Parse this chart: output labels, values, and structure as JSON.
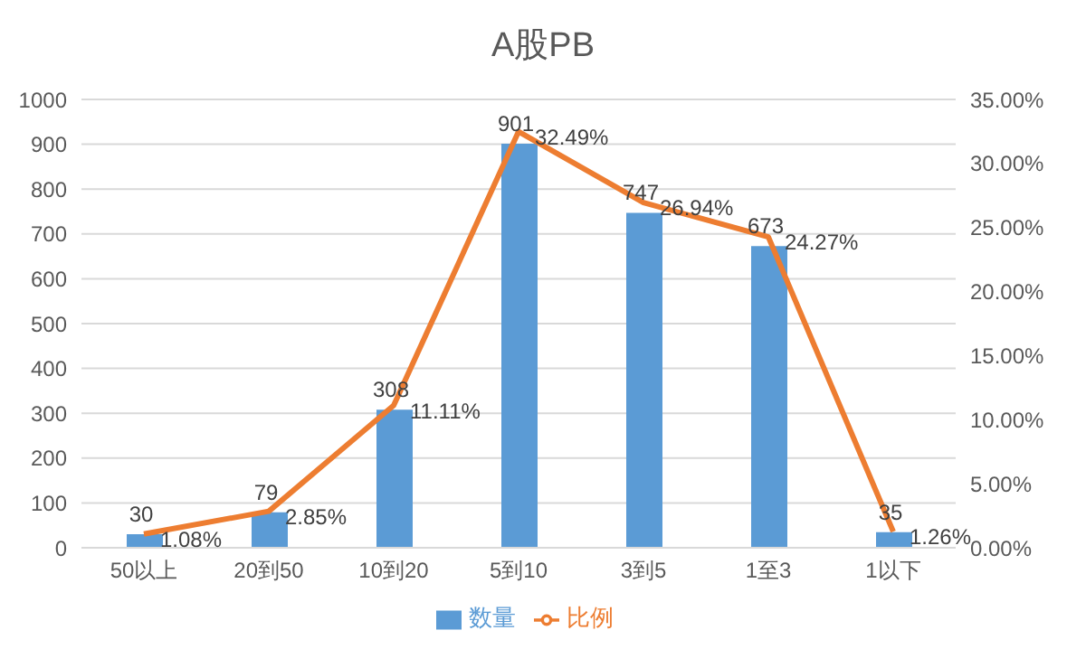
{
  "chart_data": {
    "type": "bar",
    "title": "A股PB",
    "categories": [
      "50以上",
      "20到50",
      "10到20",
      "5到10",
      "3到5",
      "1至3",
      "1以下"
    ],
    "series": [
      {
        "name": "数量",
        "color": "#5b9bd5",
        "values": [
          30,
          79,
          308,
          901,
          747,
          673,
          35
        ],
        "value_labels": [
          "30",
          "79",
          "308",
          "901",
          "747",
          "673",
          "35"
        ]
      },
      {
        "name": "比例",
        "type": "line",
        "axis": "y2",
        "color": "#ed7d31",
        "values": [
          1.08,
          2.85,
          11.11,
          32.49,
          26.94,
          24.27,
          1.26
        ],
        "value_labels": [
          "1.08%",
          "2.85%",
          "11.11%",
          "32.49%",
          "26.94%",
          "24.27%",
          "1.26%"
        ]
      }
    ],
    "ylim": [
      0,
      1000
    ],
    "yticks": [
      0,
      100,
      200,
      300,
      400,
      500,
      600,
      700,
      800,
      900,
      1000
    ],
    "y2lim": [
      0,
      35
    ],
    "y2ticks": [
      {
        "value": 0,
        "label": "0.00%"
      },
      {
        "value": 5,
        "label": "5.00%"
      },
      {
        "value": 10,
        "label": "10.00%"
      },
      {
        "value": 15,
        "label": "15.00%"
      },
      {
        "value": 20,
        "label": "20.00%"
      },
      {
        "value": 25,
        "label": "25.00%"
      },
      {
        "value": 30,
        "label": "30.00%"
      },
      {
        "value": 35,
        "label": "35.00%"
      }
    ],
    "grid": "y",
    "legend": "bottom",
    "marker": "none",
    "line_style": "solid"
  }
}
